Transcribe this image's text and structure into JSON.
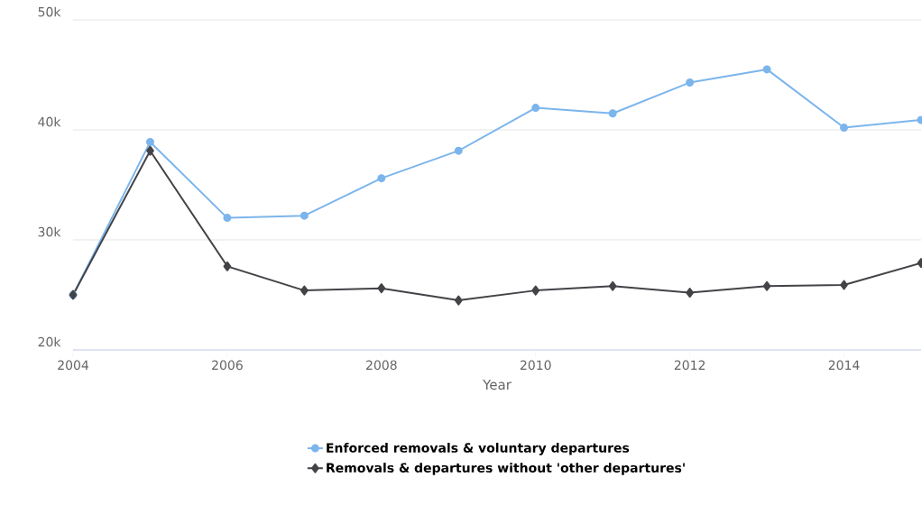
{
  "chart_data": {
    "type": "line",
    "xlabel": "Year",
    "x": [
      2004,
      2005,
      2006,
      2007,
      2008,
      2009,
      2010,
      2011,
      2012,
      2013,
      2014,
      2015
    ],
    "series": [
      {
        "name": "Enforced removals & voluntary departures",
        "color": "#7cb5ec",
        "marker": "circle",
        "values": [
          25000,
          38900,
          32000,
          32200,
          35600,
          38100,
          42000,
          41500,
          44300,
          45500,
          40200,
          40900
        ]
      },
      {
        "name": "Removals & departures without 'other departures'",
        "color": "#434348",
        "marker": "diamond",
        "values": [
          25000,
          38100,
          27600,
          25400,
          25600,
          24500,
          25400,
          25800,
          25200,
          25800,
          25900,
          27900
        ]
      }
    ],
    "xlim": [
      2004,
      2015
    ],
    "xticks": [
      2004,
      2006,
      2008,
      2010,
      2012,
      2014
    ],
    "ylim": [
      20000,
      50000
    ],
    "yticks": [
      {
        "value": 20000,
        "label": "20k"
      },
      {
        "value": 30000,
        "label": "30k"
      },
      {
        "value": 40000,
        "label": "40k"
      },
      {
        "value": 50000,
        "label": "50k"
      }
    ],
    "grid": "y",
    "legend": "bottom",
    "line_style": "solid"
  }
}
